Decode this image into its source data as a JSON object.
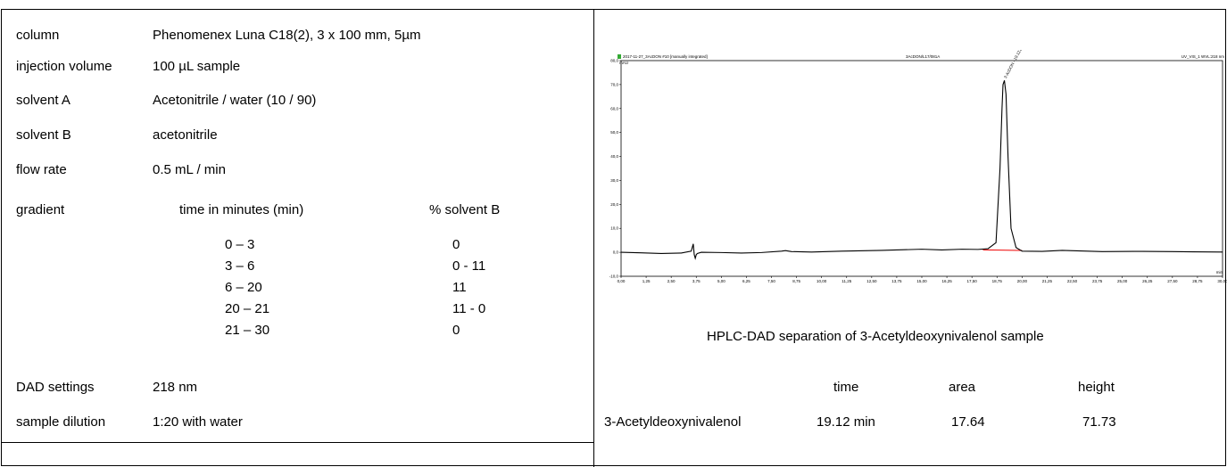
{
  "conditions": {
    "column": {
      "label": "column",
      "value": "Phenomenex Luna C18(2), 3 x 100 mm, 5µm"
    },
    "injection": {
      "label": "injection volume",
      "value": "100 µL sample"
    },
    "solvent_a": {
      "label": "solvent A",
      "value": "Acetonitrile / water (10 / 90)"
    },
    "solvent_b": {
      "label": "solvent B",
      "value": "acetonitrile"
    },
    "flow": {
      "label": "flow rate",
      "value": "0.5 mL / min"
    },
    "gradient": {
      "label": "gradient",
      "col_time": "time in minutes (min)",
      "col_b": "% solvent B",
      "rows": [
        {
          "time": "0 – 3",
          "b": "0"
        },
        {
          "time": "3 – 6",
          "b": "0 - 11"
        },
        {
          "time": "6 – 20",
          "b": "11"
        },
        {
          "time": "20 – 21",
          "b": "11 - 0"
        },
        {
          "time": "21 – 30",
          "b": "0"
        }
      ]
    },
    "dad": {
      "label": "DAD settings",
      "value": "218 nm"
    },
    "dilution": {
      "label": "sample dilution",
      "value": "1:20 with water"
    }
  },
  "chromatogram": {
    "header_left": "2017-11-27_3AcDON #10 [manually integrated]",
    "header_center": "3AcDON/L17/081A",
    "header_right": "UV_VIS_1 WVL:218 nm",
    "y_unit": "mAU",
    "x_unit": "min",
    "peak_label": "3-AcDON - 19.121",
    "caption": "HPLC-DAD separation of 3-Acetyldeoxynivalenol sample"
  },
  "chart_data": {
    "type": "line",
    "title": "",
    "xlabel": "min",
    "ylabel": "mAU",
    "xlim": [
      0,
      30
    ],
    "ylim": [
      -10,
      80
    ],
    "x_ticks": [
      "0,00",
      "1,25",
      "2,50",
      "3,75",
      "5,00",
      "6,25",
      "7,50",
      "8,75",
      "10,00",
      "11,25",
      "12,50",
      "13,75",
      "15,00",
      "16,25",
      "17,50",
      "18,75",
      "20,00",
      "21,25",
      "22,50",
      "23,75",
      "25,00",
      "26,25",
      "27,50",
      "28,75",
      "30,00"
    ],
    "y_ticks": [
      "-10,0",
      "0,0",
      "10,0",
      "20,0",
      "30,0",
      "40,0",
      "50,0",
      "60,0",
      "70,0",
      "80,0"
    ],
    "series": [
      {
        "x": [
          0,
          1.0,
          2.0,
          3.0,
          3.5,
          3.6,
          3.65,
          3.7,
          3.75,
          3.8,
          4.0,
          5.0,
          6.0,
          7.0,
          8.0,
          8.2,
          8.5,
          9.5,
          11.0,
          13.0,
          15.0,
          16.0,
          17.0,
          17.8,
          18.3,
          18.7,
          18.9,
          19.0,
          19.05,
          19.12,
          19.2,
          19.3,
          19.45,
          19.7,
          20.0,
          21.0,
          22.0,
          24.0,
          26.0,
          27.5,
          28.5,
          30.0
        ],
        "y": [
          0,
          -0.2,
          -0.5,
          -0.3,
          0.5,
          3.5,
          -1.0,
          -2.5,
          -1.0,
          -0.5,
          0,
          -0.1,
          -0.3,
          -0.1,
          0.5,
          0.7,
          0.3,
          0.1,
          0.5,
          0.8,
          1.3,
          1.0,
          1.3,
          1.2,
          1.5,
          4.0,
          35.0,
          60.0,
          70.0,
          71.73,
          66.0,
          40.0,
          10.0,
          2.0,
          0.5,
          0.4,
          0.8,
          0.3,
          0.4,
          0.3,
          0.2,
          0.1
        ]
      }
    ],
    "annotations": [
      "3-AcDON - 19.121"
    ],
    "grid": false,
    "legend": "none"
  },
  "results": {
    "headers": [
      "",
      "time",
      "area",
      "height"
    ],
    "rows": [
      [
        "3-Acetyldeoxynivalenol",
        "19.12 min",
        "17.64",
        "71.73"
      ]
    ]
  }
}
